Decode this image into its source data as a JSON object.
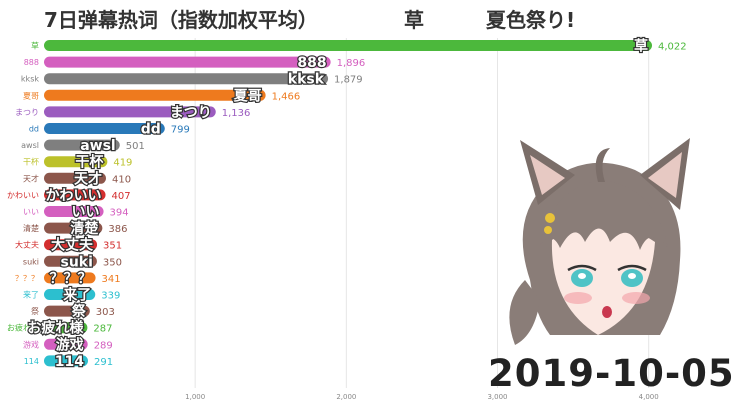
{
  "header": {
    "title": "7日弹幕热词（指数加权平均）",
    "top_word": "草",
    "event_label": "夏色祭り!"
  },
  "date_label": "2019-10-05",
  "avatar_icon": "anime-girl-avatar-icon",
  "chart_data": {
    "type": "bar",
    "orientation": "horizontal",
    "categories": [
      "草",
      "888",
      "kksk",
      "夏哥",
      "まつり",
      "dd",
      "awsl",
      "干杯",
      "天才",
      "かわいい",
      "いい",
      "清楚",
      "大丈夫",
      "suki",
      "？？？",
      "来了",
      "祭",
      "お疲れ様",
      "游戏",
      "114"
    ],
    "values": [
      4022,
      1896,
      1879,
      1466,
      1136,
      799,
      501,
      419,
      410,
      407,
      394,
      386,
      351,
      350,
      341,
      339,
      303,
      287,
      289,
      291
    ],
    "value_labels": [
      "4,022",
      "1,896",
      "1,879",
      "1,466",
      "1,136",
      "799",
      "501",
      "419",
      "410",
      "407",
      "394",
      "386",
      "351",
      "350",
      "341",
      "339",
      "303",
      "287",
      "289",
      "291"
    ],
    "colors": [
      "#4cb83c",
      "#d45fbf",
      "#7f7f7f",
      "#ee7a1e",
      "#9b5cbf",
      "#2979b9",
      "#7f7f7f",
      "#bcc12a",
      "#8c564b",
      "#d32f2f",
      "#d45fbf",
      "#8c564b",
      "#d32f2f",
      "#8c564b",
      "#ee7a1e",
      "#2cbfcf",
      "#8c564b",
      "#4cb83c",
      "#d45fbf",
      "#2cbfcf"
    ],
    "x_ticks": [
      "1,000",
      "2,000",
      "3,000",
      "4,000"
    ],
    "xlim": [
      0,
      4000
    ],
    "grid": true
  }
}
